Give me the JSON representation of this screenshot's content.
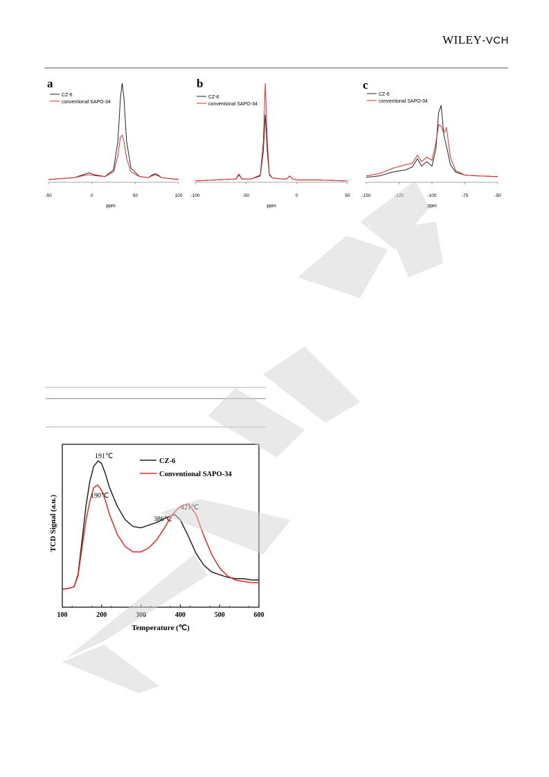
{
  "header": {
    "publisher_main": "WILEY",
    "publisher_sub": "-VCH"
  },
  "figure_nmr": {
    "panels": [
      {
        "letter": "a",
        "xlabel": "ppm",
        "ticks": [
          "-50",
          "0",
          "50",
          "100"
        ],
        "legend": [
          "CZ-6",
          "conventional SAPO-34"
        ]
      },
      {
        "letter": "b",
        "xlabel": "ppm",
        "ticks": [
          "-100",
          "-50",
          "0",
          "50"
        ],
        "legend": [
          "CZ-6",
          "conventional SAPO-34"
        ]
      },
      {
        "letter": "c",
        "xlabel": "ppm",
        "ticks": [
          "-150",
          "-125",
          "-100",
          "-75",
          "-50"
        ],
        "legend": [
          "CZ-6",
          "conventional SAPO-34"
        ]
      }
    ]
  },
  "figure_tpd": {
    "ylabel": "TCD Signal (a.u.)",
    "xlabel": "Temperature (℃)",
    "ticks": [
      "100",
      "200",
      "300",
      "400",
      "500",
      "600"
    ],
    "legend": [
      "CZ-6",
      "Conventional SAPO-34"
    ],
    "annotations": [
      "191℃",
      "190℃",
      "386℃",
      "421℃"
    ]
  },
  "colors": {
    "cz6": "#222222",
    "sapo": "#e8262a"
  },
  "chart_data": [
    {
      "type": "line",
      "title": "a",
      "xlabel": "ppm",
      "xlim": [
        -50,
        100
      ],
      "series": [
        {
          "name": "CZ-6",
          "x": [
            -50,
            -20,
            -10,
            -3,
            3,
            15,
            25,
            30,
            33,
            35,
            37,
            40,
            45,
            55,
            65,
            70,
            73,
            76,
            80,
            90,
            100
          ],
          "y": [
            0.0,
            0.02,
            0.05,
            0.07,
            0.05,
            0.03,
            0.1,
            0.4,
            0.85,
            1.0,
            0.85,
            0.4,
            0.12,
            0.03,
            0.02,
            0.05,
            0.06,
            0.05,
            0.02,
            0.01,
            0.0
          ]
        },
        {
          "name": "conventional SAPO-34",
          "x": [
            -50,
            -20,
            -10,
            -3,
            3,
            15,
            25,
            30,
            33,
            35,
            37,
            40,
            45,
            55,
            65,
            70,
            73,
            76,
            80,
            90,
            100
          ],
          "y": [
            0.0,
            0.02,
            0.04,
            0.05,
            0.04,
            0.03,
            0.08,
            0.25,
            0.44,
            0.46,
            0.4,
            0.22,
            0.08,
            0.03,
            0.02,
            0.04,
            0.05,
            0.04,
            0.02,
            0.01,
            0.0
          ]
        }
      ]
    },
    {
      "type": "line",
      "title": "b",
      "xlabel": "ppm",
      "xlim": [
        -100,
        50
      ],
      "series": [
        {
          "name": "CZ-6",
          "x": [
            -100,
            -80,
            -60,
            -57,
            -54,
            -45,
            -36,
            -33,
            -31,
            -29,
            -27,
            -24,
            -15,
            -10,
            -7,
            -4,
            0,
            20,
            50
          ],
          "y": [
            0.0,
            0.01,
            0.02,
            0.06,
            0.02,
            0.02,
            0.05,
            0.3,
            0.68,
            0.3,
            0.06,
            0.03,
            0.02,
            0.02,
            0.05,
            0.02,
            0.01,
            0.01,
            0.0
          ]
        },
        {
          "name": "conventional SAPO-34",
          "x": [
            -100,
            -80,
            -60,
            -57,
            -54,
            -45,
            -36,
            -33,
            -31,
            -29,
            -27,
            -24,
            -15,
            -10,
            -7,
            -4,
            0,
            20,
            50
          ],
          "y": [
            0.0,
            0.01,
            0.02,
            0.07,
            0.02,
            0.02,
            0.06,
            0.4,
            1.0,
            0.4,
            0.07,
            0.03,
            0.02,
            0.02,
            0.05,
            0.02,
            0.01,
            0.01,
            0.0
          ]
        }
      ]
    },
    {
      "type": "line",
      "title": "c",
      "xlabel": "ppm",
      "xlim": [
        -150,
        -50
      ],
      "series": [
        {
          "name": "CZ-6",
          "x": [
            -150,
            -140,
            -130,
            -120,
            -115,
            -111,
            -108,
            -104,
            -100,
            -97,
            -95,
            -93,
            -91,
            -89,
            -86,
            -82,
            -75,
            -65,
            -50
          ],
          "y": [
            0.03,
            0.05,
            0.1,
            0.13,
            0.17,
            0.28,
            0.18,
            0.24,
            0.18,
            0.42,
            0.9,
            1.0,
            0.6,
            0.45,
            0.2,
            0.1,
            0.06,
            0.05,
            0.04
          ]
        },
        {
          "name": "conventional SAPO-34",
          "x": [
            -150,
            -140,
            -130,
            -120,
            -115,
            -111,
            -108,
            -104,
            -100,
            -97,
            -95,
            -93,
            -91,
            -89,
            -86,
            -82,
            -75,
            -65,
            -50
          ],
          "y": [
            0.05,
            0.08,
            0.15,
            0.2,
            0.22,
            0.33,
            0.24,
            0.3,
            0.26,
            0.5,
            0.74,
            0.72,
            0.62,
            0.7,
            0.3,
            0.12,
            0.06,
            0.05,
            0.04
          ]
        }
      ]
    },
    {
      "type": "line",
      "title": "",
      "xlabel": "Temperature (℃)",
      "ylabel": "TCD Signal (a.u.)",
      "xlim": [
        100,
        600
      ],
      "series": [
        {
          "name": "CZ-6",
          "x": [
            100,
            120,
            130,
            140,
            150,
            160,
            170,
            180,
            191,
            200,
            210,
            220,
            240,
            260,
            280,
            300,
            320,
            340,
            360,
            386,
            400,
            420,
            440,
            460,
            480,
            500,
            520,
            540,
            560,
            580,
            600
          ],
          "y": [
            0.04,
            0.05,
            0.06,
            0.15,
            0.4,
            0.66,
            0.85,
            0.96,
            1.0,
            0.98,
            0.9,
            0.8,
            0.66,
            0.56,
            0.51,
            0.5,
            0.52,
            0.54,
            0.57,
            0.6,
            0.56,
            0.44,
            0.31,
            0.22,
            0.17,
            0.15,
            0.13,
            0.12,
            0.12,
            0.11,
            0.11
          ]
        },
        {
          "name": "Conventional SAPO-34",
          "x": [
            100,
            120,
            130,
            140,
            150,
            160,
            170,
            180,
            190,
            200,
            210,
            220,
            240,
            260,
            280,
            300,
            320,
            340,
            360,
            380,
            400,
            421,
            440,
            460,
            480,
            500,
            520,
            540,
            560,
            580,
            600
          ],
          "y": [
            0.04,
            0.05,
            0.06,
            0.14,
            0.35,
            0.55,
            0.7,
            0.8,
            0.82,
            0.78,
            0.7,
            0.6,
            0.45,
            0.36,
            0.32,
            0.32,
            0.35,
            0.41,
            0.5,
            0.6,
            0.66,
            0.68,
            0.6,
            0.44,
            0.3,
            0.2,
            0.14,
            0.11,
            0.1,
            0.09,
            0.09
          ]
        }
      ]
    }
  ]
}
